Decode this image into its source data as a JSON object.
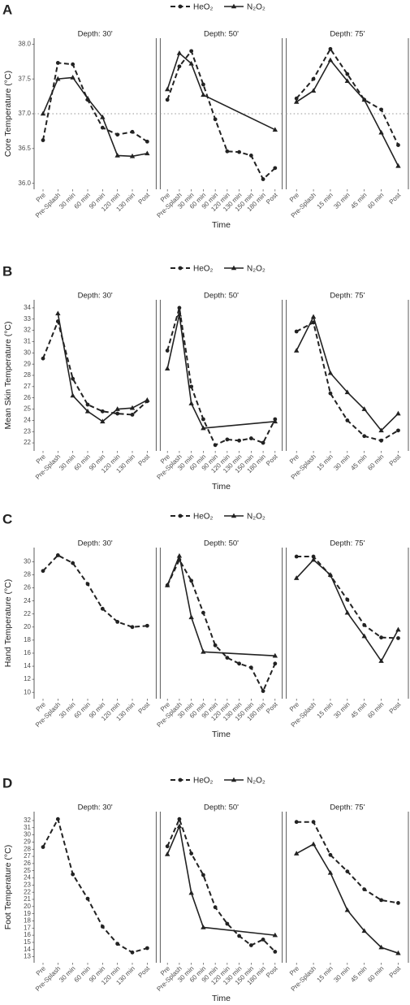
{
  "chart_data": [
    {
      "type": "line",
      "panel": "A",
      "ylabel": "Core Temperature (°C)",
      "xlabel": "Time",
      "ylim": [
        35.95,
        38.05
      ],
      "yticks": [
        {
          "value": 36,
          "label": "36.0"
        },
        36.5,
        {
          "value": 37,
          "label": "37.0"
        },
        37.5,
        {
          "value": 38,
          "label": "38.0"
        }
      ],
      "hline": 37,
      "legend": [
        {
          "name": "HeO₂",
          "color": "#222222",
          "linestyle": "dashed",
          "marker": "circle"
        },
        {
          "name": "N₂O₂",
          "color": "#222222",
          "linestyle": "solid",
          "marker": "triangle"
        }
      ],
      "facets": [
        {
          "title": "Depth: 30'",
          "categories": [
            "Pre",
            "Pre-Splash",
            "30 min",
            "60 min",
            "90 min",
            "120 min",
            "130 min",
            "Post"
          ],
          "series": [
            {
              "name": "HeO₂",
              "x": [
                "Pre",
                "Pre-Splash",
                "30 min",
                "60 min",
                "90 min",
                "120 min",
                "130 min",
                "Post"
              ],
              "values": [
                36.62,
                37.73,
                37.71,
                37.2,
                36.8,
                36.7,
                36.74,
                36.6
              ]
            },
            {
              "name": "N₂O₂",
              "x": [
                "Pre",
                "Pre-Splash",
                "30 min",
                "60 min",
                "90 min",
                "120 min",
                "130 min",
                "Post"
              ],
              "values": [
                37.0,
                37.5,
                37.52,
                37.22,
                36.95,
                36.4,
                36.39,
                36.43
              ]
            }
          ]
        },
        {
          "title": "Depth: 50'",
          "categories": [
            "Pre",
            "Pre-Splash",
            "30 min",
            "60 min",
            "90 min",
            "120 min",
            "130 min",
            "150 min",
            "180 min",
            "Post"
          ],
          "series": [
            {
              "name": "HeO₂",
              "x": [
                "Pre",
                "Pre-Splash",
                "30 min",
                "60 min",
                "90 min",
                "120 min",
                "130 min",
                "150 min",
                "180 min",
                "Post"
              ],
              "values": [
                37.2,
                37.68,
                37.9,
                37.42,
                36.92,
                36.46,
                36.45,
                36.4,
                36.06,
                36.22
              ]
            },
            {
              "name": "N₂O₂",
              "x": [
                "Pre",
                "Pre-Splash",
                "30 min",
                "60 min",
                "Post"
              ],
              "values": [
                37.35,
                37.87,
                37.72,
                37.27,
                36.77
              ]
            }
          ]
        },
        {
          "title": "Depth: 75'",
          "categories": [
            "Pre",
            "Pre-Splash",
            "15 min",
            "30 min",
            "45 min",
            "60 min",
            "Post"
          ],
          "series": [
            {
              "name": "HeO₂",
              "x": [
                "Pre",
                "Pre-Splash",
                "15 min",
                "30 min",
                "45 min",
                "60 min",
                "Post"
              ],
              "values": [
                37.22,
                37.5,
                37.93,
                37.57,
                37.2,
                37.06,
                36.55
              ]
            },
            {
              "name": "N₂O₂",
              "x": [
                "Pre",
                "Pre-Splash",
                "15 min",
                "30 min",
                "45 min",
                "60 min",
                "Post"
              ],
              "values": [
                37.17,
                37.33,
                37.77,
                37.47,
                37.2,
                36.73,
                36.25
              ]
            }
          ]
        }
      ]
    },
    {
      "type": "line",
      "panel": "B",
      "ylabel": "Mean Skin Temperature (°C)",
      "xlabel": "Time",
      "ylim": [
        21.5,
        34.5
      ],
      "yticks": [
        22,
        23,
        24,
        25,
        26,
        27,
        28,
        29,
        30,
        31,
        32,
        33,
        34
      ],
      "legend": [
        {
          "name": "HeO₂",
          "color": "#222222",
          "linestyle": "dashed",
          "marker": "circle"
        },
        {
          "name": "N₂O₂",
          "color": "#222222",
          "linestyle": "solid",
          "marker": "triangle"
        }
      ],
      "facets": [
        {
          "title": "Depth: 30'",
          "categories": [
            "Pre",
            "Pre-Splash",
            "30 min",
            "60 min",
            "90 min",
            "120 min",
            "130 min",
            "Post"
          ],
          "series": [
            {
              "name": "HeO₂",
              "x": [
                "Pre",
                "Pre-Splash",
                "30 min",
                "60 min",
                "90 min",
                "120 min",
                "130 min",
                "Post"
              ],
              "values": [
                29.5,
                32.8,
                27.7,
                25.4,
                24.8,
                24.6,
                24.5,
                25.7
              ]
            },
            {
              "name": "N₂O₂",
              "x": [
                "Pre-Splash",
                "30 min",
                "60 min",
                "90 min",
                "120 min",
                "130 min",
                "Post"
              ],
              "values": [
                33.5,
                26.2,
                24.8,
                23.9,
                25.0,
                25.1,
                25.8
              ]
            }
          ]
        },
        {
          "title": "Depth: 50'",
          "categories": [
            "Pre",
            "Pre-Splash",
            "30 min",
            "60 min",
            "90 min",
            "120 min",
            "130 min",
            "150 min",
            "180 min",
            "Post"
          ],
          "series": [
            {
              "name": "HeO₂",
              "x": [
                "Pre",
                "Pre-Splash",
                "30 min",
                "60 min",
                "90 min",
                "120 min",
                "130 min",
                "150 min",
                "180 min",
                "Post"
              ],
              "values": [
                30.2,
                34.0,
                27.0,
                24.1,
                21.8,
                22.3,
                22.2,
                22.4,
                22.0,
                24.1
              ]
            },
            {
              "name": "N₂O₂",
              "x": [
                "Pre",
                "Pre-Splash",
                "30 min",
                "60 min",
                "Post"
              ],
              "values": [
                28.6,
                33.4,
                25.5,
                23.3,
                23.9
              ]
            }
          ]
        },
        {
          "title": "Depth: 75'",
          "categories": [
            "Pre",
            "Pre-Splash",
            "15 min",
            "30 min",
            "45 min",
            "60 min",
            "Post"
          ],
          "series": [
            {
              "name": "HeO₂",
              "x": [
                "Pre",
                "Pre-Splash",
                "15 min",
                "30 min",
                "45 min",
                "60 min",
                "Post"
              ],
              "values": [
                31.9,
                32.7,
                26.4,
                24.0,
                22.6,
                22.2,
                23.1
              ]
            },
            {
              "name": "N₂O₂",
              "x": [
                "Pre",
                "Pre-Splash",
                "15 min",
                "30 min",
                "45 min",
                "60 min",
                "Post"
              ],
              "values": [
                30.2,
                33.2,
                28.2,
                26.5,
                25.0,
                23.1,
                24.6
              ]
            }
          ]
        }
      ]
    },
    {
      "type": "line",
      "panel": "C",
      "ylabel": "Hand Temperature (°C)",
      "xlabel": "Time",
      "ylim": [
        9.4,
        31.8
      ],
      "yticks": [
        10,
        12,
        14,
        16,
        18,
        20,
        22,
        24,
        26,
        28,
        30
      ],
      "legend": [
        {
          "name": "HeO₂",
          "color": "#222222",
          "linestyle": "dashed",
          "marker": "circle"
        },
        {
          "name": "N₂O₂",
          "color": "#222222",
          "linestyle": "solid",
          "marker": "triangle"
        }
      ],
      "facets": [
        {
          "title": "Depth: 30'",
          "categories": [
            "Pre",
            "Pre-Splash",
            "30 min",
            "60 min",
            "90 min",
            "120 min",
            "130 min",
            "Post"
          ],
          "series": [
            {
              "name": "HeO₂",
              "x": [
                "Pre",
                "Pre-Splash",
                "30 min",
                "60 min",
                "90 min",
                "120 min",
                "130 min",
                "Post"
              ],
              "values": [
                28.6,
                31.0,
                29.8,
                26.6,
                22.8,
                20.8,
                20.0,
                20.2
              ]
            }
          ]
        },
        {
          "title": "Depth: 50'",
          "categories": [
            "Pre",
            "Pre-Splash",
            "30 min",
            "60 min",
            "90 min",
            "120 min",
            "130 min",
            "150 min",
            "180 min",
            "Post"
          ],
          "series": [
            {
              "name": "HeO₂",
              "x": [
                "Pre",
                "Pre-Splash",
                "30 min",
                "60 min",
                "90 min",
                "120 min",
                "130 min",
                "150 min",
                "180 min",
                "Post"
              ],
              "values": [
                26.4,
                30.3,
                27.1,
                22.2,
                17.2,
                15.3,
                14.4,
                13.8,
                10.2,
                14.4
              ]
            },
            {
              "name": "N₂O₂",
              "x": [
                "Pre",
                "Pre-Splash",
                "30 min",
                "60 min",
                "Post"
              ],
              "values": [
                26.4,
                30.9,
                21.5,
                16.2,
                15.6
              ]
            }
          ]
        },
        {
          "title": "Depth: 75'",
          "categories": [
            "Pre",
            "Pre-Splash",
            "15 min",
            "30 min",
            "45 min",
            "60 min",
            "Post"
          ],
          "series": [
            {
              "name": "HeO₂",
              "x": [
                "Pre",
                "Pre-Splash",
                "15 min",
                "30 min",
                "45 min",
                "60 min",
                "Post"
              ],
              "values": [
                30.8,
                30.8,
                27.9,
                24.2,
                20.3,
                18.4,
                18.3
              ]
            },
            {
              "name": "N₂O₂",
              "x": [
                "Pre",
                "Pre-Splash",
                "15 min",
                "30 min",
                "45 min",
                "60 min",
                "Post"
              ],
              "values": [
                27.5,
                30.3,
                28.0,
                22.2,
                18.6,
                14.8,
                19.6
              ]
            }
          ]
        }
      ]
    },
    {
      "type": "line",
      "panel": "D",
      "ylabel": "Foot Temperature (°C)",
      "xlabel": "Time",
      "ylim": [
        12.5,
        32.9
      ],
      "yticks": [
        13,
        14,
        15,
        16,
        17,
        18,
        19,
        20,
        21,
        22,
        23,
        24,
        25,
        26,
        27,
        28,
        29,
        30,
        31,
        32
      ],
      "legend": [
        {
          "name": "HeO₂",
          "color": "#222222",
          "linestyle": "dashed",
          "marker": "circle"
        },
        {
          "name": "N₂O₂",
          "color": "#222222",
          "linestyle": "solid",
          "marker": "triangle"
        }
      ],
      "facets": [
        {
          "title": "Depth: 30'",
          "categories": [
            "Pre",
            "Pre-Splash",
            "30 min",
            "60 min",
            "90 min",
            "120 min",
            "130 min",
            "Post"
          ],
          "series": [
            {
              "name": "HeO₂",
              "x": [
                "Pre",
                "Pre-Splash",
                "30 min",
                "60 min",
                "90 min",
                "120 min",
                "130 min",
                "Post"
              ],
              "values": [
                28.3,
                32.2,
                24.5,
                21.1,
                17.2,
                14.8,
                13.6,
                14.2
              ]
            }
          ]
        },
        {
          "title": "Depth: 50'",
          "categories": [
            "Pre",
            "Pre-Splash",
            "30 min",
            "60 min",
            "90 min",
            "120 min",
            "130 min",
            "150 min",
            "180 min",
            "Post"
          ],
          "series": [
            {
              "name": "HeO₂",
              "x": [
                "Pre",
                "Pre-Splash",
                "30 min",
                "60 min",
                "90 min",
                "120 min",
                "130 min",
                "150 min",
                "180 min",
                "Post"
              ],
              "values": [
                28.4,
                32.2,
                27.4,
                24.4,
                19.9,
                17.6,
                15.9,
                14.6,
                15.4,
                13.7
              ]
            },
            {
              "name": "N₂O₂",
              "x": [
                "Pre",
                "Pre-Splash",
                "30 min",
                "60 min",
                "Post"
              ],
              "values": [
                27.3,
                31.2,
                21.9,
                17.1,
                16.0
              ]
            }
          ]
        },
        {
          "title": "Depth: 75'",
          "categories": [
            "Pre",
            "Pre-Splash",
            "15 min",
            "30 min",
            "45 min",
            "60 min",
            "Post"
          ],
          "series": [
            {
              "name": "HeO₂",
              "x": [
                "Pre",
                "Pre-Splash",
                "15 min",
                "30 min",
                "45 min",
                "60 min",
                "Post"
              ],
              "values": [
                31.8,
                31.8,
                27.2,
                24.9,
                22.4,
                20.9,
                20.5
              ]
            },
            {
              "name": "N₂O₂",
              "x": [
                "Pre",
                "Pre-Splash",
                "15 min",
                "30 min",
                "45 min",
                "60 min",
                "Post"
              ],
              "values": [
                27.4,
                28.7,
                24.7,
                19.5,
                16.6,
                14.3,
                13.5
              ]
            }
          ]
        }
      ]
    }
  ]
}
